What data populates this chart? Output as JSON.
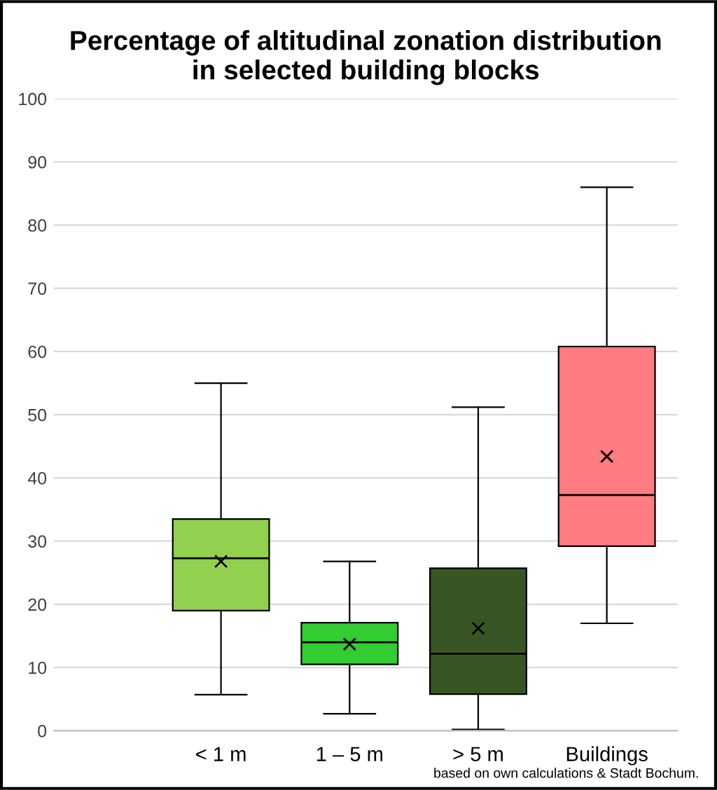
{
  "chart_data": {
    "type": "box",
    "title": "Percentage of altitudinal zonation distribution\nin selected building blocks",
    "categories": [
      "< 1 m",
      "1 – 5 m",
      "> 5 m",
      "Buildings"
    ],
    "colors": [
      "#92d050",
      "#33cc33",
      "#375623",
      "#ff7c80"
    ],
    "boxes": [
      {
        "low": 5.7,
        "q1": 19,
        "median": 27.3,
        "q3": 33.5,
        "high": 55,
        "mean": 26.8
      },
      {
        "low": 2.7,
        "q1": 10.5,
        "median": 14,
        "q3": 17.1,
        "high": 26.8,
        "mean": 13.7
      },
      {
        "low": 0.2,
        "q1": 5.8,
        "median": 12.2,
        "q3": 25.7,
        "high": 51.2,
        "mean": 16.2
      },
      {
        "low": 17,
        "q1": 29.2,
        "median": 37.3,
        "q3": 60.8,
        "high": 86,
        "mean": 43.4
      }
    ],
    "ylim": [
      0,
      100
    ],
    "yticks": [
      0,
      10,
      20,
      30,
      40,
      50,
      60,
      70,
      80,
      90,
      100
    ],
    "grid": "y",
    "annotations": [
      "based on own calculations & Stadt Bochum."
    ]
  }
}
